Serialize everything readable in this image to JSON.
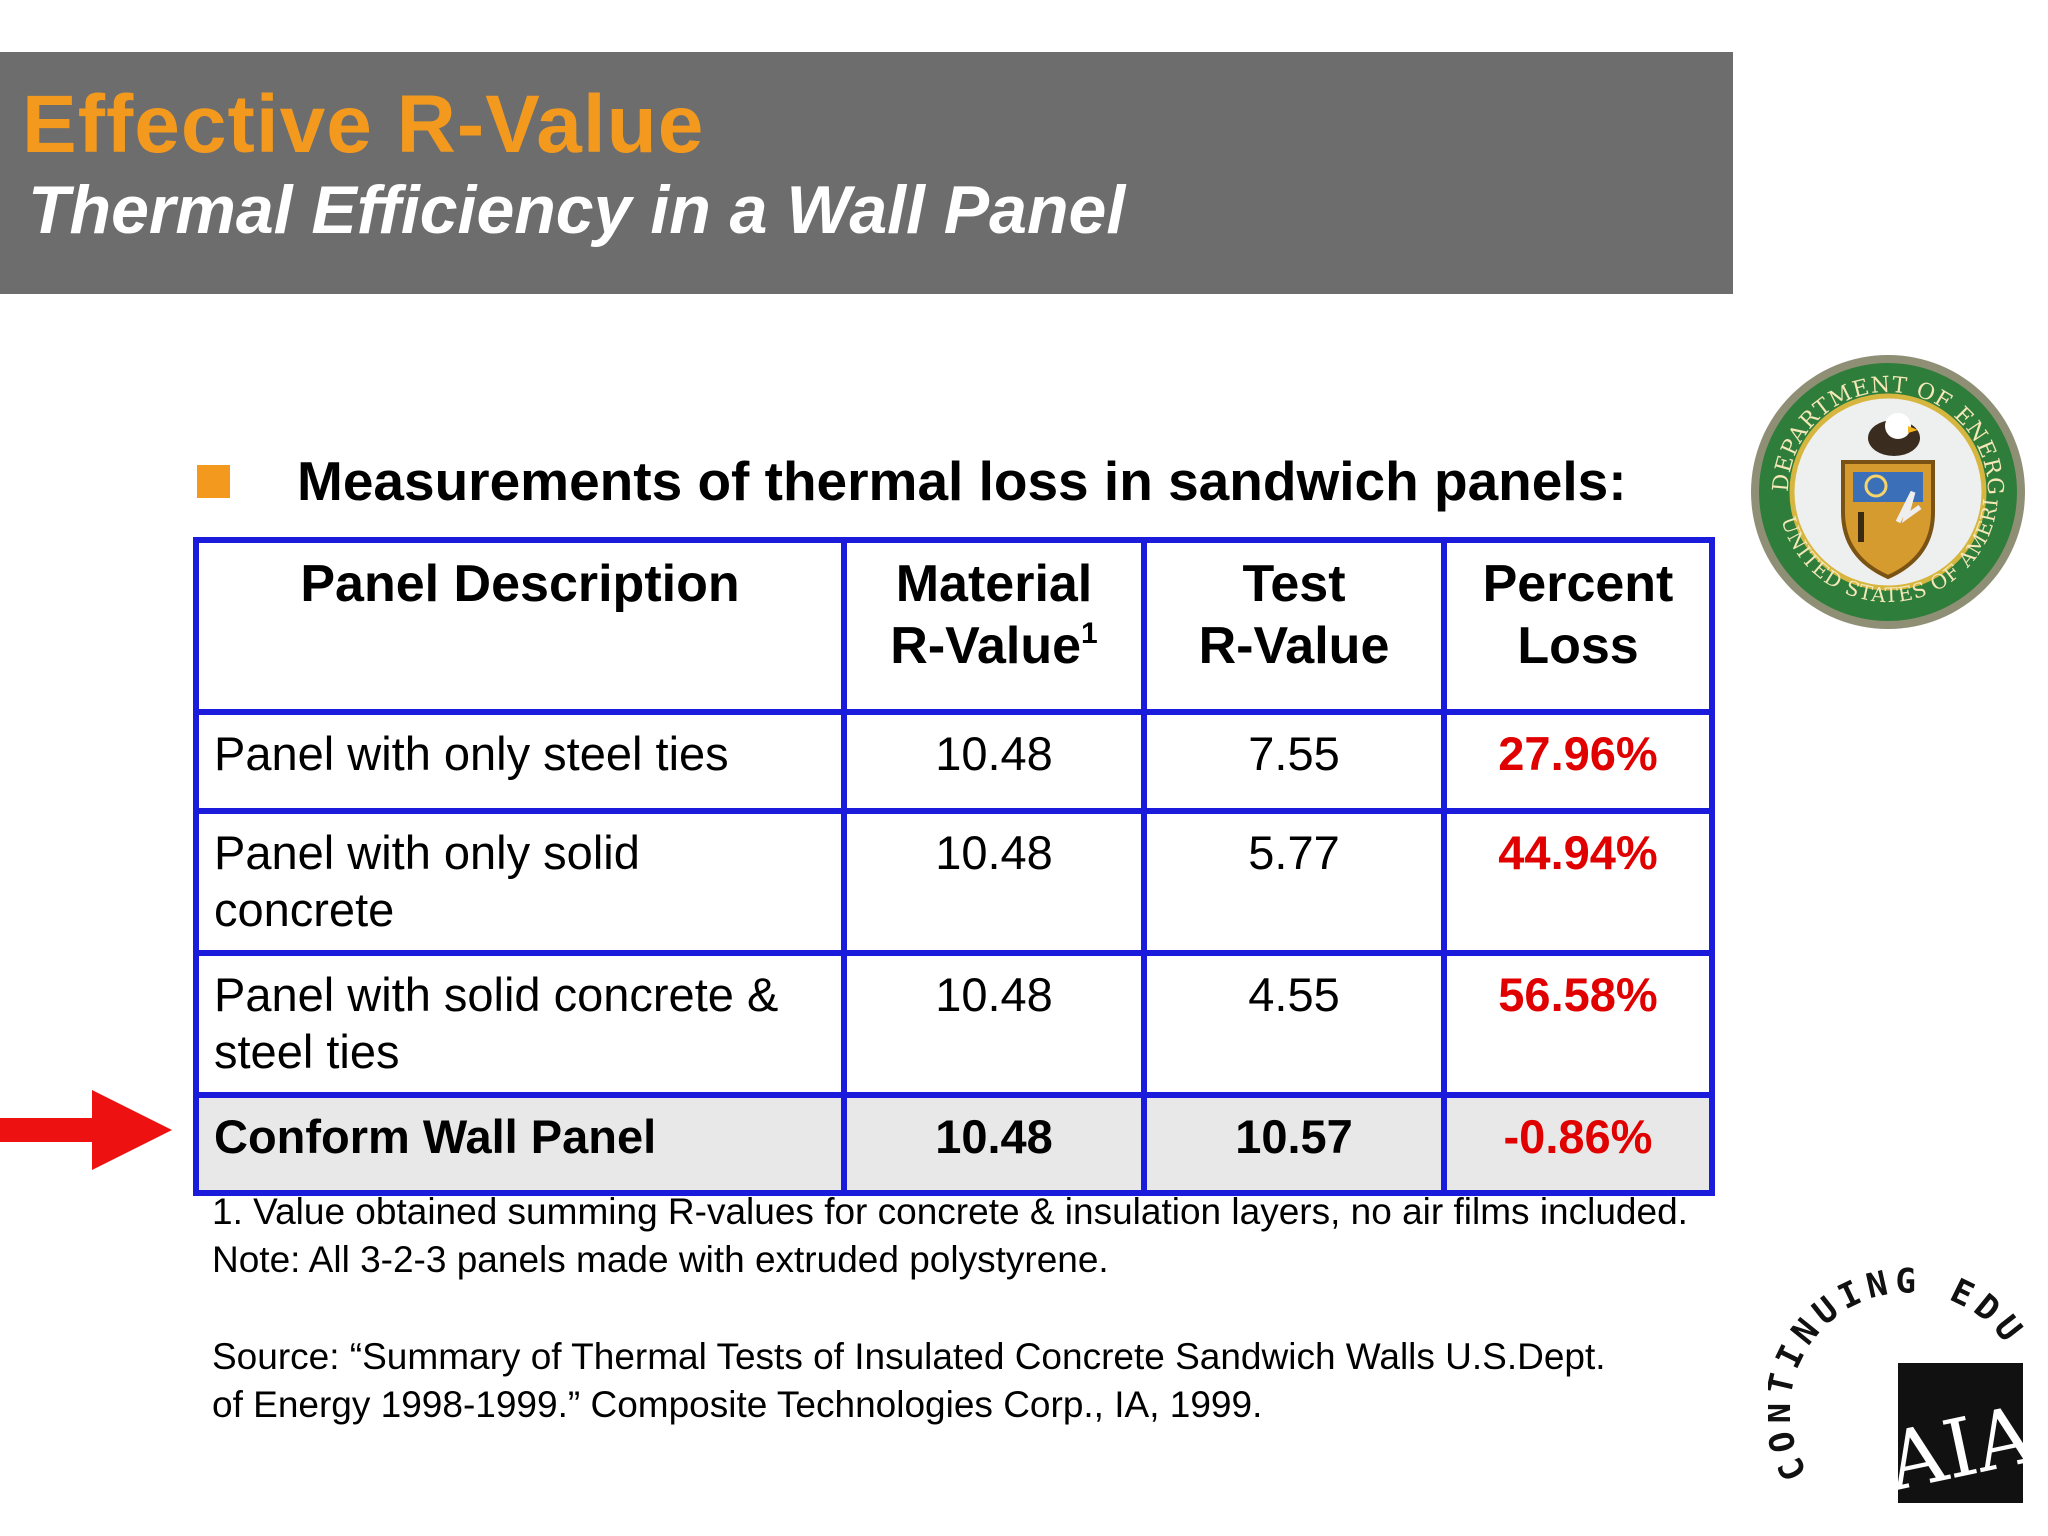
{
  "header": {
    "title": "Effective R-Value",
    "subtitle": "Thermal Efficiency in a Wall Panel"
  },
  "bullet": {
    "text": "Measurements of thermal loss in sandwich panels:"
  },
  "table": {
    "headers": {
      "desc": "Panel Description",
      "material_l1": "Material",
      "material_l2": "R-Value",
      "material_sup": "1",
      "test_l1": "Test",
      "test_l2": "R-Value",
      "loss_l1": "Percent",
      "loss_l2": "Loss"
    },
    "rows": [
      {
        "desc_l1": "Panel with only steel ties",
        "desc_l2": "",
        "material": "10.48",
        "test": "7.55",
        "loss": "27.96%"
      },
      {
        "desc_l1": "Panel with only solid",
        "desc_l2": "concrete",
        "material": "10.48",
        "test": "5.77",
        "loss": "44.94%"
      },
      {
        "desc_l1": "Panel with solid concrete &",
        "desc_l2": "steel ties",
        "material": "10.48",
        "test": "4.55",
        "loss": "56.58%"
      },
      {
        "desc_l1": "Conform Wall Panel",
        "desc_l2": "",
        "material": "10.48",
        "test": "10.57",
        "loss": "-0.86%"
      }
    ]
  },
  "notes": {
    "line1": "1.  Value obtained summing R-values for concrete & insulation layers, no air films included.",
    "line2": "Note:  All 3-2-3 panels made with extruded polystyrene.",
    "source_l1": "Source:  “Summary of Thermal Tests of Insulated Concrete Sandwich Walls U.S.Dept.",
    "source_l2": "of Energy 1998-1999.”  Composite Technologies Corp., IA, 1999."
  },
  "seal": {
    "top_text": "DEPARTMENT OF ENERGY",
    "bottom_text": "UNITED STATES OF AMERICA"
  },
  "aia_logo": {
    "ring_text": "CONTINUING EDUCATION",
    "mark": "AIA"
  },
  "colors": {
    "accent_orange": "#f39a1e",
    "header_gray": "#6d6d6e",
    "table_border": "#1b1bdc",
    "loss_red": "#e00000",
    "arrow_red": "#ee1111"
  },
  "icons": {
    "arrow": "right-arrow-icon",
    "bullet": "square-bullet-icon"
  }
}
